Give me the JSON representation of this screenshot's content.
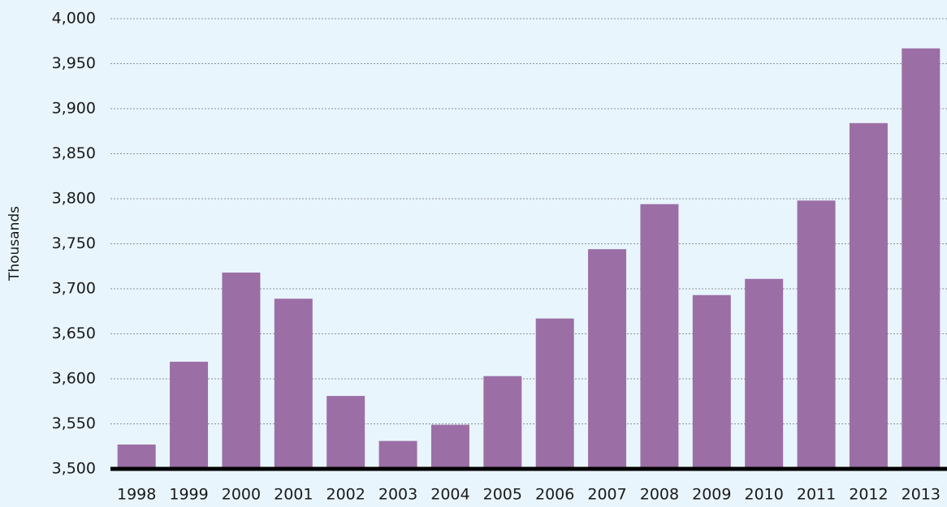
{
  "chart_data": {
    "type": "bar",
    "y_label": "Thousands",
    "categories": [
      "1998",
      "1999",
      "2000",
      "2001",
      "2002",
      "2003",
      "2004",
      "2005",
      "2006",
      "2007",
      "2008",
      "2009",
      "2010",
      "2011",
      "2012",
      "2013"
    ],
    "values": [
      3527,
      3619,
      3718,
      3689,
      3581,
      3531,
      3549,
      3603,
      3667,
      3744,
      3794,
      3693,
      3711,
      3798,
      3884,
      3967
    ],
    "color": "#9b6fa5",
    "ylim": [
      3500,
      4000
    ],
    "yticks": [
      {
        "value": 3500,
        "label": "3,500"
      },
      {
        "value": 3550,
        "label": "3,550"
      },
      {
        "value": 3600,
        "label": "3,600"
      },
      {
        "value": 3650,
        "label": "3,650"
      },
      {
        "value": 3700,
        "label": "3,700"
      },
      {
        "value": 3750,
        "label": "3,750"
      },
      {
        "value": 3800,
        "label": "3,800"
      },
      {
        "value": 3850,
        "label": "3,850"
      },
      {
        "value": 3900,
        "label": "3,900"
      },
      {
        "value": 3950,
        "label": "3,950"
      },
      {
        "value": 4000,
        "label": "4,000"
      }
    ],
    "grid": true
  }
}
